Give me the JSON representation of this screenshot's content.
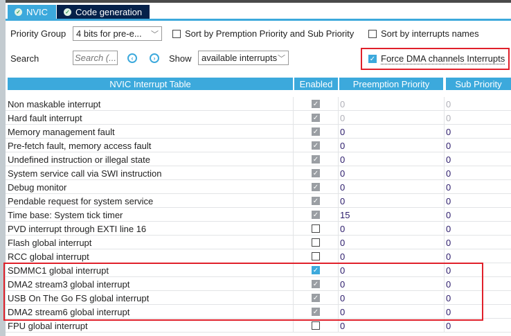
{
  "tabs": [
    {
      "label": "NVIC",
      "active": true
    },
    {
      "label": "Code generation",
      "active": false
    }
  ],
  "toolbar": {
    "priority_group_label": "Priority Group",
    "priority_group_value": "4 bits for pre-e...",
    "sort_premption_label": "Sort by Premption Priority and Sub Priority",
    "sort_names_label": "Sort by interrupts names",
    "search_label": "Search",
    "search_placeholder": "Search (...",
    "show_label": "Show",
    "show_value": "available interrupts",
    "force_dma_label": "Force DMA channels Interrupts",
    "force_dma_checked": true
  },
  "table": {
    "headers": [
      "NVIC Interrupt Table",
      "Enabled",
      "Preemption Priority",
      "Sub Priority"
    ],
    "rows": [
      {
        "name": "Non maskable interrupt",
        "enabled": "locked",
        "pre": "0",
        "sub": "0",
        "dim": true
      },
      {
        "name": "Hard fault interrupt",
        "enabled": "locked",
        "pre": "0",
        "sub": "0",
        "dim": true
      },
      {
        "name": "Memory management fault",
        "enabled": "locked",
        "pre": "0",
        "sub": "0"
      },
      {
        "name": "Pre-fetch fault, memory access fault",
        "enabled": "locked",
        "pre": "0",
        "sub": "0"
      },
      {
        "name": "Undefined instruction or illegal state",
        "enabled": "locked",
        "pre": "0",
        "sub": "0"
      },
      {
        "name": "System service call via SWI instruction",
        "enabled": "locked",
        "pre": "0",
        "sub": "0"
      },
      {
        "name": "Debug monitor",
        "enabled": "locked",
        "pre": "0",
        "sub": "0"
      },
      {
        "name": "Pendable request for system service",
        "enabled": "locked",
        "pre": "0",
        "sub": "0"
      },
      {
        "name": "Time base: System tick timer",
        "enabled": "locked",
        "pre": "15",
        "sub": "0"
      },
      {
        "name": "PVD interrupt through EXTI line 16",
        "enabled": "off",
        "pre": "0",
        "sub": "0"
      },
      {
        "name": "Flash global interrupt",
        "enabled": "off",
        "pre": "0",
        "sub": "0"
      },
      {
        "name": "RCC global interrupt",
        "enabled": "off",
        "pre": "0",
        "sub": "0"
      },
      {
        "name": "SDMMC1 global interrupt",
        "enabled": "on",
        "pre": "0",
        "sub": "0"
      },
      {
        "name": "DMA2 stream3 global interrupt",
        "enabled": "locked",
        "pre": "0",
        "sub": "0"
      },
      {
        "name": "USB On The Go FS global interrupt",
        "enabled": "locked",
        "pre": "0",
        "sub": "0"
      },
      {
        "name": "DMA2 stream6 global interrupt",
        "enabled": "locked",
        "pre": "0",
        "sub": "0"
      },
      {
        "name": "FPU global interrupt",
        "enabled": "off",
        "pre": "0",
        "sub": "0"
      }
    ]
  },
  "colors": {
    "accent": "#3ca9dc",
    "tab_dark": "#05214a",
    "highlight": "#e0202a"
  }
}
